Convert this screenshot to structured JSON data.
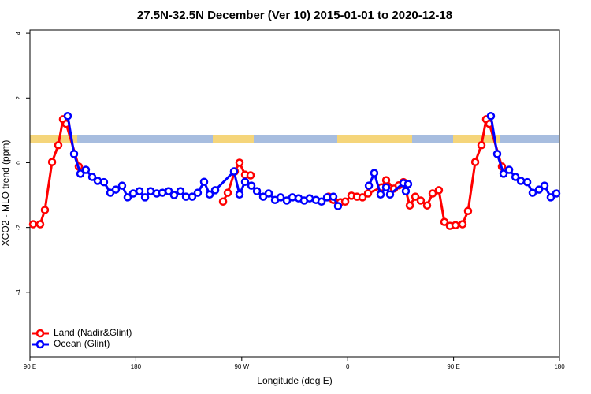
{
  "chart_data": {
    "type": "line",
    "title": "27.5N-32.5N December (Ver 10)   2015-01-01 to 2020-12-18",
    "x_label": "Longitude (deg E)",
    "y_label": "XCO2 - MLO trend (ppm)",
    "xlim": [
      90,
      540
    ],
    "ylim": [
      -6,
      4.1
    ],
    "xticks": [
      {
        "value": 90,
        "label": "90 E"
      },
      180,
      {
        "value": 270,
        "label": "90 W"
      },
      {
        "value": 360,
        "label": "0"
      },
      {
        "value": 450,
        "label": "90 E"
      },
      {
        "value": 540,
        "label": "180"
      }
    ],
    "yticks": [
      -4,
      -2,
      0,
      2,
      4
    ],
    "legend": "bottom-left",
    "series": [
      {
        "name": "Land (Nadir&Glint)",
        "color": "#ff0000",
        "x": [
          92.7,
          98.7,
          102.7,
          108.8,
          114.1,
          118.1,
          120.8,
          131.5,
          254.1,
          258.1,
          264.1,
          268.1,
          272.8,
          277.5,
          343.8,
          347.8,
          353.8,
          357.9,
          363.2,
          367.9,
          372.6,
          377.3,
          388.7,
          392.7,
          399.4,
          403.4,
          407.4,
          412.8,
          417.5,
          422.1,
          427.5,
          432.2,
          437.5,
          442.2,
          446.9,
          451.6,
          457.6,
          462.3,
          468.4,
          473.7,
          477.7,
          480.4,
          491.1
        ],
        "values": [
          -1.9,
          -1.9,
          -1.46,
          0.02,
          0.54,
          1.34,
          1.2,
          -0.12,
          -1.2,
          -0.93,
          -0.27,
          0,
          -0.37,
          -0.39,
          -1.05,
          -1.15,
          -1.22,
          -1.2,
          -1.02,
          -1.05,
          -1.07,
          -0.95,
          -0.76,
          -0.54,
          -0.8,
          -0.7,
          -0.6,
          -1.32,
          -1.05,
          -1.17,
          -1.32,
          -0.95,
          -0.85,
          -1.83,
          -1.95,
          -1.93,
          -1.9,
          -1.49,
          0.02,
          0.54,
          1.34,
          1.2,
          -0.12
        ]
      },
      {
        "name": "Ocean (Glint)",
        "color": "#0000ff",
        "x": [
          122.1,
          127.5,
          132.9,
          137.5,
          142.9,
          147.6,
          152.9,
          158.3,
          163.0,
          168.3,
          173.0,
          177.7,
          183.1,
          187.8,
          192.5,
          197.8,
          202.5,
          207.9,
          212.5,
          217.9,
          222.6,
          227.9,
          232.6,
          238.0,
          242.7,
          247.4,
          263.4,
          268.1,
          272.8,
          278.2,
          282.9,
          288.2,
          292.9,
          298.3,
          303.0,
          308.3,
          313.0,
          318.4,
          323.0,
          327.7,
          333.1,
          337.8,
          342.5,
          347.8,
          351.8,
          378.0,
          382.6,
          388.0,
          392.7,
          396.0,
          407.4,
          409.4,
          411.4,
          481.7,
          487.1,
          492.5,
          497.2,
          502.6,
          507.2,
          512.6,
          517.2,
          522.6,
          527.3,
          532.6,
          537.3
        ],
        "values": [
          1.44,
          0.27,
          -0.34,
          -0.22,
          -0.44,
          -0.56,
          -0.6,
          -0.93,
          -0.83,
          -0.71,
          -1.07,
          -0.95,
          -0.88,
          -1.07,
          -0.88,
          -0.95,
          -0.93,
          -0.88,
          -1.0,
          -0.88,
          -1.05,
          -1.05,
          -0.93,
          -0.59,
          -0.98,
          -0.85,
          -0.27,
          -0.98,
          -0.59,
          -0.71,
          -0.88,
          -1.05,
          -0.95,
          -1.15,
          -1.07,
          -1.17,
          -1.07,
          -1.1,
          -1.17,
          -1.1,
          -1.15,
          -1.2,
          -1.07,
          -1.05,
          -1.34,
          -0.71,
          -0.32,
          -0.98,
          -0.76,
          -0.98,
          -0.63,
          -0.88,
          -0.66,
          1.44,
          0.27,
          -0.34,
          -0.22,
          -0.44,
          -0.56,
          -0.6,
          -0.93,
          -0.83,
          -0.71,
          -1.07,
          -0.95
        ]
      }
    ]
  }
}
